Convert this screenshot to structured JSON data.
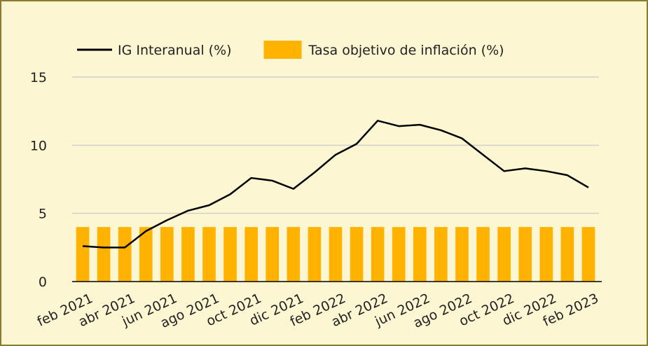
{
  "chart_data": {
    "type": "combo",
    "categories": [
      "feb 2021",
      null,
      "abr 2021",
      null,
      "jun 2021",
      null,
      "ago 2021",
      null,
      "oct 2021",
      null,
      "dic 2021",
      null,
      "feb 2022",
      null,
      "abr 2022",
      null,
      "jun 2022",
      null,
      "ago 2022",
      null,
      "oct 2022",
      null,
      "dic 2022",
      null,
      "feb 2023"
    ],
    "series": [
      {
        "name": "IG Interanual (%)",
        "type": "line",
        "color": "#000000",
        "values": [
          2.6,
          2.5,
          2.5,
          3.7,
          4.5,
          5.2,
          5.6,
          6.4,
          7.6,
          7.4,
          6.8,
          8.0,
          9.3,
          10.1,
          11.8,
          11.4,
          11.5,
          11.1,
          10.5,
          9.3,
          8.1,
          8.3,
          8.1,
          7.8,
          6.9
        ]
      },
      {
        "name": "Tasa objetivo de inflación (%)",
        "type": "bar",
        "color": "#ffb300",
        "values": [
          4,
          4,
          4,
          4,
          4,
          4,
          4,
          4,
          4,
          4,
          4,
          4,
          4,
          4,
          4,
          4,
          4,
          4,
          4,
          4,
          4,
          4,
          4,
          4,
          4
        ]
      }
    ],
    "ylim": [
      0,
      15
    ],
    "yticks": [
      0,
      5,
      10,
      15
    ],
    "grid": true,
    "legend": "top"
  }
}
